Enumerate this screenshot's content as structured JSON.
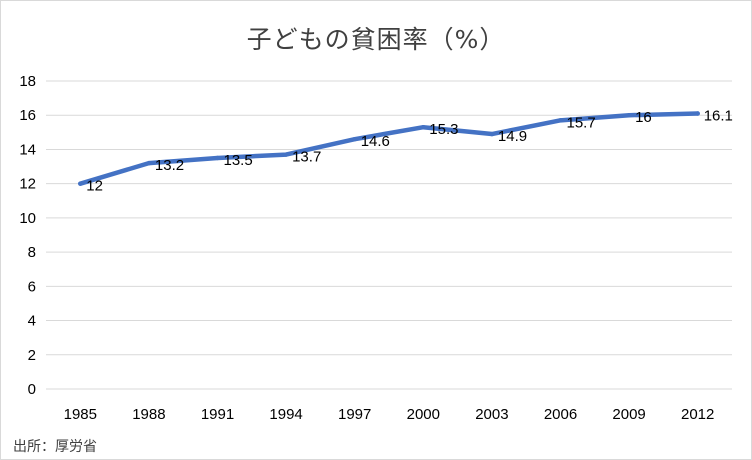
{
  "chart_data": {
    "type": "line",
    "title": "子どもの貧困率（%）",
    "xlabel": "",
    "ylabel": "",
    "source": "出所：厚労省",
    "categories": [
      "1985",
      "1988",
      "1991",
      "1994",
      "1997",
      "2000",
      "2003",
      "2006",
      "2009",
      "2012"
    ],
    "series": [
      {
        "values": [
          12,
          13.2,
          13.5,
          13.7,
          14.6,
          15.3,
          14.9,
          15.7,
          16,
          16.1
        ],
        "labels": [
          "12",
          "13.2",
          "13.5",
          "13.7",
          "14.6",
          "15.3",
          "14.9",
          "15.7",
          "16",
          "16.1"
        ],
        "color": "#4472c4"
      }
    ],
    "ylim": [
      0,
      18
    ],
    "yticks": [
      0,
      2,
      4,
      6,
      8,
      10,
      12,
      14,
      16,
      18
    ],
    "grid": true,
    "legend": "none"
  }
}
